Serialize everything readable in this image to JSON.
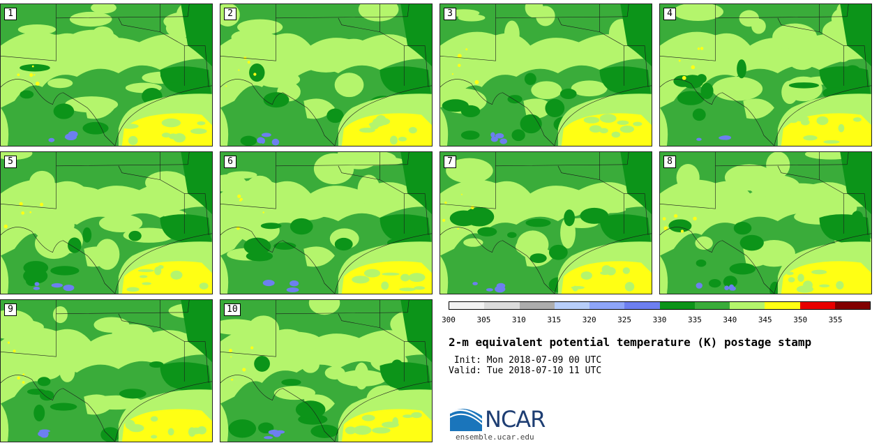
{
  "members": [
    "1",
    "2",
    "3",
    "4",
    "5",
    "6",
    "7",
    "8",
    "9",
    "10"
  ],
  "colorbar": {
    "colors": [
      "#f3f3f3",
      "#dcdcdc",
      "#adadad",
      "#b7cefa",
      "#8ea5f8",
      "#6d7ff0",
      "#0c9419",
      "#3aac3a",
      "#b4f56c",
      "#ffff14",
      "#e80000",
      "#820000"
    ],
    "ticks": [
      "300",
      "305",
      "310",
      "315",
      "320",
      "325",
      "330",
      "335",
      "340",
      "345",
      "350",
      "355"
    ]
  },
  "title": "2-m equivalent potential temperature (K) postage stamp",
  "init": " Init: Mon 2018-07-09 00 UTC",
  "valid": "Valid: Tue 2018-07-10 11 UTC",
  "logo": {
    "name": "NCAR",
    "url": "ensemble.ucar.edu"
  },
  "map_colors": {
    "dark": "#0c9419",
    "mid": "#3aac3a",
    "light": "#b4f56c",
    "yellow": "#ffff14",
    "blue": "#6d7ff0",
    "border": "#1a1a1a"
  }
}
